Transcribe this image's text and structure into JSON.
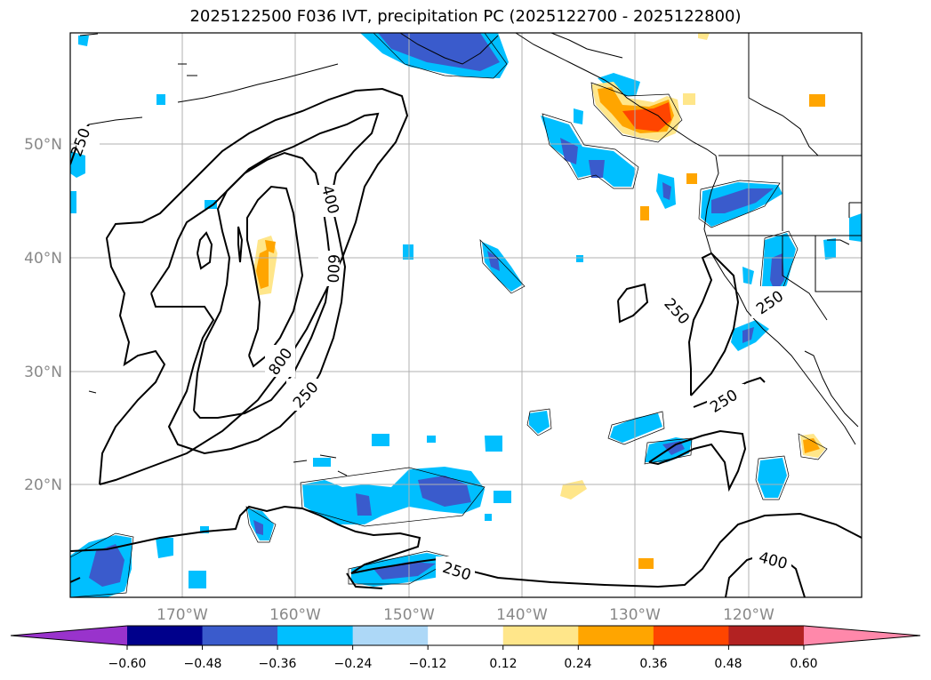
{
  "title": "2025122500 F036 IVT, precipitation PC (2025122700 - 2025122800)",
  "lat_labels": [
    "50°N",
    "40°N",
    "30°N",
    "20°N"
  ],
  "lon_labels": [
    "170°W",
    "160°W",
    "150°W",
    "140°W",
    "130°W",
    "120°W"
  ],
  "contour_labels": [
    "250",
    "400",
    "600",
    "800",
    "250",
    "250",
    "250",
    "250",
    "400",
    "250"
  ],
  "colorbar": {
    "ticks": [
      "−0.60",
      "−0.48",
      "−0.36",
      "−0.24",
      "−0.12",
      "0.12",
      "0.24",
      "0.36",
      "0.48",
      "0.60"
    ],
    "colors": [
      "#9933cc",
      "#00008b",
      "#3a5bcc",
      "#00bfff",
      "#add8f7",
      "#ffffff",
      "#ffe68a",
      "#ffa500",
      "#ff4500",
      "#b22222",
      "#ff88aa"
    ]
  },
  "colors": {
    "contour": "#000000",
    "grid": "#b0b0b0",
    "coast": "#000000"
  }
}
